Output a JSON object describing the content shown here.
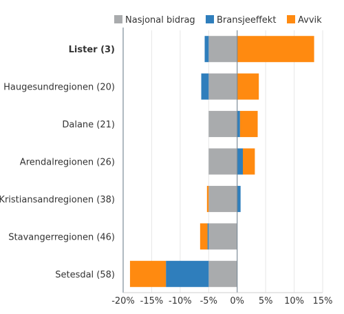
{
  "chart_data": {
    "type": "bar",
    "orientation": "horizontal",
    "stacked": true,
    "legend_position": "top-right",
    "grid": true,
    "xlim": [
      -20,
      15
    ],
    "x_ticks": [
      "-20%",
      "-15%",
      "-10%",
      "-5%",
      "0%",
      "5%",
      "10%",
      "15%"
    ],
    "categories": [
      "Lister (3)",
      "Haugesundregionen (20)",
      "Dalane (21)",
      "Arendalregionen (26)",
      "Kristiansandregionen (38)",
      "Stavangerregionen (46)",
      "Setesdal (58)"
    ],
    "highlighted_category": "Lister (3)",
    "series": [
      {
        "name": "Nasjonal bidrag",
        "color": "#a9abad",
        "values": [
          -5.0,
          -5.0,
          -5.0,
          -5.0,
          -5.0,
          -5.0,
          -5.0
        ]
      },
      {
        "name": "Bransjeeffekt",
        "color": "#2f7ebc",
        "values": [
          -0.7,
          -1.3,
          0.5,
          1.0,
          0.6,
          -0.2,
          -7.5
        ]
      },
      {
        "name": "Avvik",
        "color": "#ff8a10",
        "values": [
          13.5,
          3.8,
          3.1,
          2.1,
          -0.3,
          -1.3,
          -6.3
        ]
      }
    ]
  }
}
